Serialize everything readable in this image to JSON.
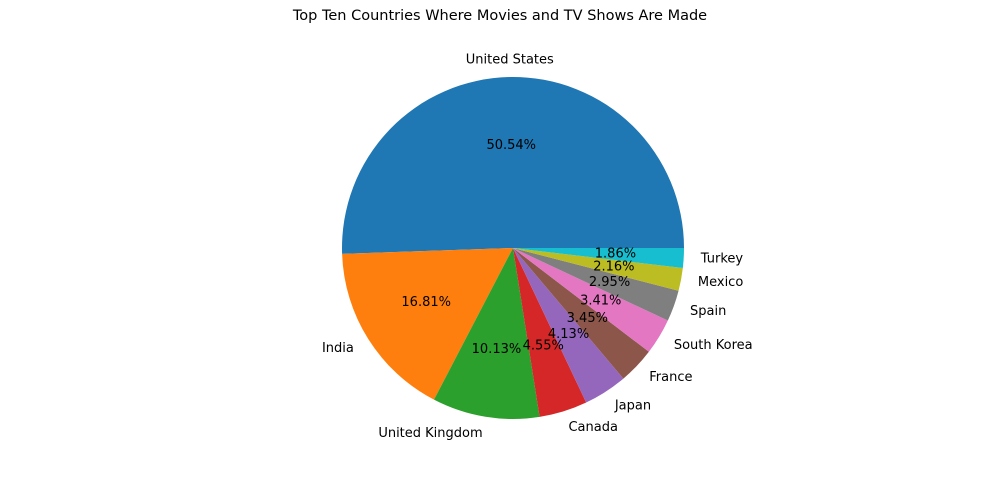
{
  "chart_data": {
    "type": "pie",
    "title": "Top Ten Countries Where Movies and TV Shows Are Made",
    "categories": [
      "United States",
      "India",
      "United Kingdom",
      "Canada",
      "Japan",
      "France",
      "South Korea",
      "Spain",
      "Mexico",
      "Turkey"
    ],
    "values": [
      50.54,
      16.81,
      10.13,
      4.55,
      4.13,
      3.45,
      3.41,
      2.95,
      2.16,
      1.86
    ],
    "percent_labels": [
      "50.54%",
      "16.81%",
      "10.13%",
      "4.55%",
      "4.13%",
      "3.45%",
      "3.41%",
      "2.95%",
      "2.16%",
      "1.86%"
    ],
    "colors": [
      "#1f77b4",
      "#ff7f0e",
      "#2ca02c",
      "#d62728",
      "#9467bd",
      "#8c564b",
      "#e377c2",
      "#7f7f7f",
      "#bcbd22",
      "#17becf"
    ],
    "start_angle": 0,
    "direction": "counterclockwise"
  }
}
